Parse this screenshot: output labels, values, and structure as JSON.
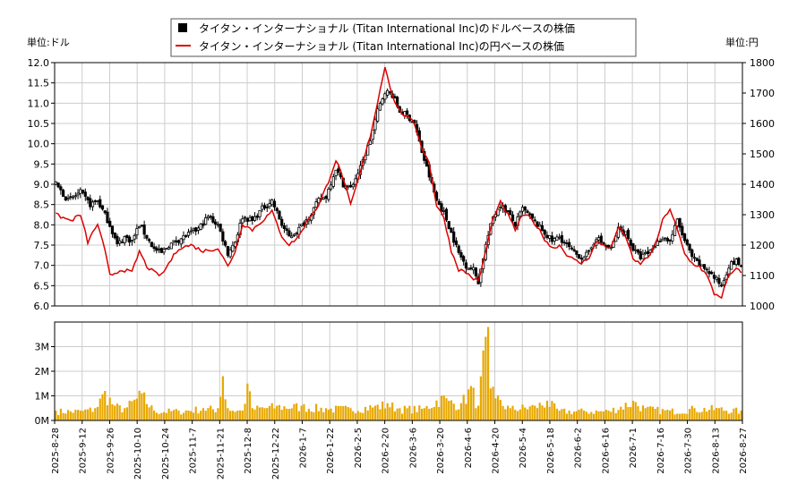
{
  "chart_data": {
    "type": "line",
    "legend": {
      "placement": "top-center",
      "items": [
        {
          "label": "タイタン・インターナショナル (Titan International Inc)のドルベースの株価",
          "color": "#000000",
          "marker": "square"
        },
        {
          "label": "タイタン・インターナショナル (Titan International Inc)の円ベースの株価",
          "color": "#dd0000",
          "marker": "line"
        }
      ]
    },
    "left_unit": "単位:ドル",
    "right_unit": "単位:円",
    "price_axis": {
      "min": 6.0,
      "max": 12.0,
      "ticks": [
        "6.0",
        "6.5",
        "7.0",
        "7.5",
        "8.0",
        "8.5",
        "9.0",
        "9.5",
        "10.0",
        "10.5",
        "11.0",
        "11.5",
        "12.0"
      ]
    },
    "yen_axis": {
      "min": 1000,
      "max": 1800,
      "ticks": [
        "1000",
        "1100",
        "1200",
        "1300",
        "1400",
        "1500",
        "1600",
        "1700",
        "1800"
      ]
    },
    "volume_axis": {
      "min": 0,
      "max": 4000000,
      "ticks": [
        {
          "v": 0,
          "label": "0M"
        },
        {
          "v": 1000000,
          "label": "1M"
        },
        {
          "v": 2000000,
          "label": "2M"
        },
        {
          "v": 3000000,
          "label": "3M"
        }
      ]
    },
    "x_ticks": [
      "2025-8-28",
      "2025-9-12",
      "2025-9-26",
      "2025-10-10",
      "2025-10-24",
      "2025-11-7",
      "2025-11-21",
      "2025-12-8",
      "2025-12-22",
      "2026-1-7",
      "2026-1-22",
      "2026-2-5",
      "2026-2-20",
      "2026-3-6",
      "2026-3-20",
      "2026-4-6",
      "2026-4-20",
      "2026-5-4",
      "2026-5-18",
      "2026-6-2",
      "2026-6-16",
      "2026-7-1",
      "2026-7-16",
      "2026-7-30",
      "2026-8-13",
      "2026-8-27"
    ],
    "grid": true,
    "colors": {
      "candle": "#000000",
      "yen_line": "#dd0000",
      "volume": "#e8a800",
      "grid": "#cccccc"
    },
    "series": [
      {
        "name": "タイタン・インターナショナル (Titan International Inc)のドルベースの株価",
        "anchors": [
          {
            "t": 0,
            "v": 9.0
          },
          {
            "t": 5,
            "v": 8.6
          },
          {
            "t": 10,
            "v": 8.8
          },
          {
            "t": 14,
            "v": 8.5
          },
          {
            "t": 17,
            "v": 8.6
          },
          {
            "t": 22,
            "v": 8.0
          },
          {
            "t": 25,
            "v": 7.5
          },
          {
            "t": 28,
            "v": 7.7
          },
          {
            "t": 31,
            "v": 7.6
          },
          {
            "t": 34,
            "v": 8.0
          },
          {
            "t": 37,
            "v": 7.7
          },
          {
            "t": 40,
            "v": 7.4
          },
          {
            "t": 43,
            "v": 7.3
          },
          {
            "t": 46,
            "v": 7.5
          },
          {
            "t": 52,
            "v": 7.7
          },
          {
            "t": 58,
            "v": 7.9
          },
          {
            "t": 62,
            "v": 8.2
          },
          {
            "t": 66,
            "v": 8.0
          },
          {
            "t": 70,
            "v": 7.3
          },
          {
            "t": 73,
            "v": 7.6
          },
          {
            "t": 76,
            "v": 8.2
          },
          {
            "t": 80,
            "v": 8.1
          },
          {
            "t": 84,
            "v": 8.4
          },
          {
            "t": 88,
            "v": 8.6
          },
          {
            "t": 92,
            "v": 8.0
          },
          {
            "t": 95,
            "v": 7.7
          },
          {
            "t": 99,
            "v": 7.9
          },
          {
            "t": 103,
            "v": 8.2
          },
          {
            "t": 107,
            "v": 8.6
          },
          {
            "t": 110,
            "v": 8.7
          },
          {
            "t": 114,
            "v": 9.4
          },
          {
            "t": 117,
            "v": 9.0
          },
          {
            "t": 120,
            "v": 8.9
          },
          {
            "t": 124,
            "v": 9.4
          },
          {
            "t": 128,
            "v": 10.1
          },
          {
            "t": 131,
            "v": 10.8
          },
          {
            "t": 134,
            "v": 11.3
          },
          {
            "t": 137,
            "v": 11.2
          },
          {
            "t": 140,
            "v": 10.8
          },
          {
            "t": 143,
            "v": 10.7
          },
          {
            "t": 146,
            "v": 10.5
          },
          {
            "t": 149,
            "v": 9.8
          },
          {
            "t": 152,
            "v": 9.2
          },
          {
            "t": 155,
            "v": 8.6
          },
          {
            "t": 158,
            "v": 8.3
          },
          {
            "t": 161,
            "v": 7.8
          },
          {
            "t": 164,
            "v": 7.3
          },
          {
            "t": 167,
            "v": 7.0
          },
          {
            "t": 170,
            "v": 6.9
          },
          {
            "t": 172,
            "v": 6.6
          },
          {
            "t": 175,
            "v": 7.5
          },
          {
            "t": 178,
            "v": 8.2
          },
          {
            "t": 181,
            "v": 8.5
          },
          {
            "t": 184,
            "v": 8.3
          },
          {
            "t": 187,
            "v": 8.0
          },
          {
            "t": 190,
            "v": 8.4
          },
          {
            "t": 193,
            "v": 8.2
          },
          {
            "t": 196,
            "v": 8.0
          },
          {
            "t": 199,
            "v": 7.8
          },
          {
            "t": 202,
            "v": 7.6
          },
          {
            "t": 205,
            "v": 7.7
          },
          {
            "t": 208,
            "v": 7.5
          },
          {
            "t": 211,
            "v": 7.3
          },
          {
            "t": 214,
            "v": 7.2
          },
          {
            "t": 217,
            "v": 7.3
          },
          {
            "t": 220,
            "v": 7.7
          },
          {
            "t": 223,
            "v": 7.5
          },
          {
            "t": 226,
            "v": 7.4
          },
          {
            "t": 229,
            "v": 7.9
          },
          {
            "t": 232,
            "v": 7.8
          },
          {
            "t": 235,
            "v": 7.4
          },
          {
            "t": 238,
            "v": 7.2
          },
          {
            "t": 241,
            "v": 7.3
          },
          {
            "t": 244,
            "v": 7.5
          },
          {
            "t": 247,
            "v": 7.7
          },
          {
            "t": 250,
            "v": 7.6
          },
          {
            "t": 253,
            "v": 8.1
          },
          {
            "t": 256,
            "v": 7.6
          },
          {
            "t": 259,
            "v": 7.2
          },
          {
            "t": 262,
            "v": 7.0
          },
          {
            "t": 265,
            "v": 6.9
          },
          {
            "t": 268,
            "v": 6.7
          },
          {
            "t": 271,
            "v": 6.5
          },
          {
            "t": 274,
            "v": 7.0
          },
          {
            "t": 277,
            "v": 7.1
          },
          {
            "t": 279,
            "v": 7.0
          }
        ]
      },
      {
        "name": "タイタン・インターナショナル (Titan International Inc)の円ベースの株価",
        "anchors": [
          {
            "t": 0,
            "v": 1300
          },
          {
            "t": 6,
            "v": 1280
          },
          {
            "t": 10,
            "v": 1300
          },
          {
            "t": 13,
            "v": 1210
          },
          {
            "t": 17,
            "v": 1270
          },
          {
            "t": 20,
            "v": 1180
          },
          {
            "t": 22,
            "v": 1100
          },
          {
            "t": 27,
            "v": 1120
          },
          {
            "t": 31,
            "v": 1110
          },
          {
            "t": 34,
            "v": 1180
          },
          {
            "t": 37,
            "v": 1130
          },
          {
            "t": 40,
            "v": 1110
          },
          {
            "t": 43,
            "v": 1100
          },
          {
            "t": 46,
            "v": 1140
          },
          {
            "t": 50,
            "v": 1190
          },
          {
            "t": 55,
            "v": 1200
          },
          {
            "t": 60,
            "v": 1180
          },
          {
            "t": 66,
            "v": 1190
          },
          {
            "t": 70,
            "v": 1130
          },
          {
            "t": 73,
            "v": 1180
          },
          {
            "t": 76,
            "v": 1270
          },
          {
            "t": 80,
            "v": 1250
          },
          {
            "t": 84,
            "v": 1280
          },
          {
            "t": 88,
            "v": 1310
          },
          {
            "t": 92,
            "v": 1230
          },
          {
            "t": 95,
            "v": 1200
          },
          {
            "t": 99,
            "v": 1230
          },
          {
            "t": 103,
            "v": 1290
          },
          {
            "t": 107,
            "v": 1330
          },
          {
            "t": 111,
            "v": 1410
          },
          {
            "t": 114,
            "v": 1480
          },
          {
            "t": 117,
            "v": 1420
          },
          {
            "t": 120,
            "v": 1330
          },
          {
            "t": 124,
            "v": 1440
          },
          {
            "t": 128,
            "v": 1560
          },
          {
            "t": 131,
            "v": 1670
          },
          {
            "t": 134,
            "v": 1790
          },
          {
            "t": 137,
            "v": 1690
          },
          {
            "t": 140,
            "v": 1640
          },
          {
            "t": 143,
            "v": 1620
          },
          {
            "t": 146,
            "v": 1600
          },
          {
            "t": 149,
            "v": 1520
          },
          {
            "t": 152,
            "v": 1470
          },
          {
            "t": 155,
            "v": 1330
          },
          {
            "t": 158,
            "v": 1290
          },
          {
            "t": 161,
            "v": 1180
          },
          {
            "t": 164,
            "v": 1120
          },
          {
            "t": 167,
            "v": 1110
          },
          {
            "t": 170,
            "v": 1090
          },
          {
            "t": 172,
            "v": 1080
          },
          {
            "t": 175,
            "v": 1180
          },
          {
            "t": 178,
            "v": 1290
          },
          {
            "t": 181,
            "v": 1340
          },
          {
            "t": 184,
            "v": 1300
          },
          {
            "t": 187,
            "v": 1250
          },
          {
            "t": 190,
            "v": 1300
          },
          {
            "t": 193,
            "v": 1290
          },
          {
            "t": 196,
            "v": 1260
          },
          {
            "t": 199,
            "v": 1220
          },
          {
            "t": 202,
            "v": 1190
          },
          {
            "t": 205,
            "v": 1200
          },
          {
            "t": 208,
            "v": 1170
          },
          {
            "t": 211,
            "v": 1150
          },
          {
            "t": 214,
            "v": 1140
          },
          {
            "t": 217,
            "v": 1160
          },
          {
            "t": 220,
            "v": 1210
          },
          {
            "t": 223,
            "v": 1200
          },
          {
            "t": 226,
            "v": 1190
          },
          {
            "t": 229,
            "v": 1260
          },
          {
            "t": 232,
            "v": 1230
          },
          {
            "t": 235,
            "v": 1150
          },
          {
            "t": 238,
            "v": 1140
          },
          {
            "t": 241,
            "v": 1160
          },
          {
            "t": 244,
            "v": 1200
          },
          {
            "t": 247,
            "v": 1280
          },
          {
            "t": 250,
            "v": 1320
          },
          {
            "t": 253,
            "v": 1250
          },
          {
            "t": 256,
            "v": 1170
          },
          {
            "t": 259,
            "v": 1140
          },
          {
            "t": 262,
            "v": 1130
          },
          {
            "t": 265,
            "v": 1100
          },
          {
            "t": 268,
            "v": 1040
          },
          {
            "t": 271,
            "v": 1030
          },
          {
            "t": 274,
            "v": 1100
          },
          {
            "t": 277,
            "v": 1120
          },
          {
            "t": 279,
            "v": 1110
          }
        ]
      },
      {
        "name": "",
        "type": "bar",
        "anchors": [
          {
            "t": 0,
            "v": 400000
          },
          {
            "t": 10,
            "v": 400000
          },
          {
            "t": 16,
            "v": 500000
          },
          {
            "t": 20,
            "v": 1200000
          },
          {
            "t": 24,
            "v": 600000
          },
          {
            "t": 28,
            "v": 500000
          },
          {
            "t": 35,
            "v": 1100000
          },
          {
            "t": 40,
            "v": 400000
          },
          {
            "t": 50,
            "v": 400000
          },
          {
            "t": 60,
            "v": 500000
          },
          {
            "t": 66,
            "v": 500000
          },
          {
            "t": 68,
            "v": 1800000
          },
          {
            "t": 70,
            "v": 500000
          },
          {
            "t": 76,
            "v": 400000
          },
          {
            "t": 78,
            "v": 1500000
          },
          {
            "t": 80,
            "v": 500000
          },
          {
            "t": 90,
            "v": 600000
          },
          {
            "t": 100,
            "v": 600000
          },
          {
            "t": 110,
            "v": 500000
          },
          {
            "t": 120,
            "v": 500000
          },
          {
            "t": 130,
            "v": 600000
          },
          {
            "t": 135,
            "v": 700000
          },
          {
            "t": 140,
            "v": 500000
          },
          {
            "t": 150,
            "v": 500000
          },
          {
            "t": 157,
            "v": 1000000
          },
          {
            "t": 160,
            "v": 800000
          },
          {
            "t": 165,
            "v": 700000
          },
          {
            "t": 169,
            "v": 1400000
          },
          {
            "t": 172,
            "v": 600000
          },
          {
            "t": 175,
            "v": 3400000
          },
          {
            "t": 176,
            "v": 3800000
          },
          {
            "t": 177,
            "v": 1300000
          },
          {
            "t": 179,
            "v": 900000
          },
          {
            "t": 185,
            "v": 500000
          },
          {
            "t": 195,
            "v": 600000
          },
          {
            "t": 200,
            "v": 800000
          },
          {
            "t": 205,
            "v": 400000
          },
          {
            "t": 215,
            "v": 400000
          },
          {
            "t": 225,
            "v": 400000
          },
          {
            "t": 235,
            "v": 800000
          },
          {
            "t": 240,
            "v": 500000
          },
          {
            "t": 250,
            "v": 400000
          },
          {
            "t": 260,
            "v": 500000
          },
          {
            "t": 270,
            "v": 500000
          },
          {
            "t": 279,
            "v": 400000
          }
        ]
      }
    ]
  }
}
